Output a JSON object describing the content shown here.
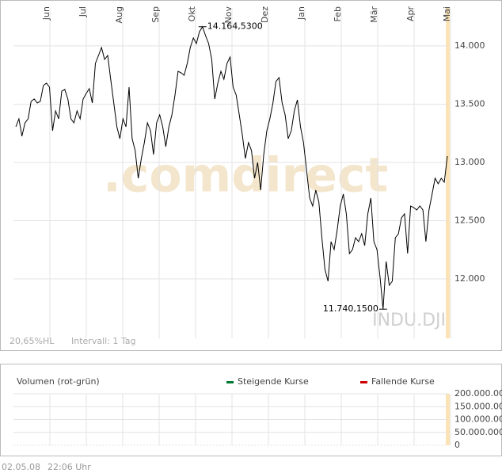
{
  "chart_data": [
    {
      "type": "line",
      "months": [
        "Jun",
        "Jul",
        "Aug",
        "Sep",
        "Okt",
        "Nov",
        "Dez",
        "Jan",
        "Feb",
        "Mär",
        "Apr",
        "Mai"
      ],
      "series": [
        {
          "name": "INDU.DJI",
          "color": "#000000",
          "values": [
            13306,
            13374,
            13225,
            13340,
            13374,
            13524,
            13544,
            13510,
            13524,
            13660,
            13680,
            13646,
            13272,
            13442,
            13374,
            13612,
            13626,
            13544,
            13374,
            13340,
            13442,
            13374,
            13544,
            13592,
            13633,
            13510,
            13850,
            13918,
            13986,
            13884,
            13918,
            13714,
            13510,
            13306,
            13204,
            13374,
            13306,
            13646,
            13204,
            13102,
            12864,
            13034,
            13170,
            13340,
            13272,
            13068,
            13340,
            13408,
            13306,
            13136,
            13306,
            13408,
            13578,
            13782,
            13769,
            13748,
            13850,
            13986,
            14068,
            14020,
            14122,
            14164,
            14088,
            14020,
            13884,
            13544,
            13680,
            13782,
            13714,
            13850,
            13905,
            13646,
            13578,
            13408,
            13238,
            13034,
            13170,
            13102,
            12864,
            13000,
            12762,
            13068,
            13272,
            13374,
            13510,
            13694,
            13728,
            13510,
            13408,
            13204,
            13272,
            13442,
            13537,
            13306,
            13170,
            12932,
            12694,
            12626,
            12762,
            12660,
            12354,
            12082,
            11980,
            12320,
            12252,
            12422,
            12626,
            12728,
            12558,
            12218,
            12252,
            12354,
            12320,
            12388,
            12286,
            12558,
            12694,
            12320,
            12252,
            12014,
            11740,
            12150,
            11946,
            11980,
            12354,
            12388,
            12524,
            12558,
            12218,
            12626,
            12612,
            12592,
            12626,
            12592,
            12320,
            12592,
            12728,
            12864,
            12816,
            12864,
            12830,
            13054
          ]
        }
      ],
      "annotations": [
        {
          "label": "14.164,5300",
          "value": 14164.53
        },
        {
          "label": "11.740,1500",
          "value": 11740.15
        }
      ],
      "ylim": [
        11490,
        14326
      ],
      "yticks": [
        {
          "value": 12000,
          "label": "12.000"
        },
        {
          "value": 12500,
          "label": "12.500"
        },
        {
          "value": 13000,
          "label": "13.000"
        },
        {
          "value": 13500,
          "label": "13.500"
        },
        {
          "value": 14000,
          "label": "14.000"
        }
      ],
      "grid": true,
      "watermark": ".comdirect",
      "symbol": "INDU.DJI",
      "info": [
        "20,65%HL",
        "Intervall: 1 Tag"
      ]
    },
    {
      "type": "volume",
      "title": "Volumen (rot-grün)",
      "series": [
        {
          "name": "Steigende Kurse",
          "color": "#007a33"
        },
        {
          "name": "Fallende Kurse",
          "color": "#cc0000"
        }
      ],
      "ylim": [
        0,
        200000000
      ],
      "yticks": [
        {
          "value": 0,
          "label": "0"
        },
        {
          "value": 50000000,
          "label": "50.000.000"
        },
        {
          "value": 100000000,
          "label": "100.000.000"
        },
        {
          "value": 150000000,
          "label": "150.000.000"
        },
        {
          "value": 200000000,
          "label": "200.000.000"
        }
      ],
      "grid": true
    }
  ],
  "footer": {
    "date": "02.05.08",
    "time": "22:06 Uhr"
  }
}
